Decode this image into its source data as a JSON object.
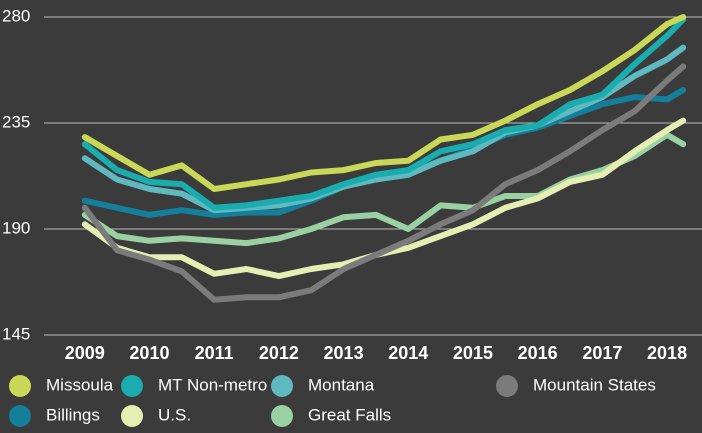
{
  "chart_data": {
    "type": "line",
    "x": [
      2009,
      2009.5,
      2010,
      2010.5,
      2011,
      2011.5,
      2012,
      2012.5,
      2013,
      2013.5,
      2014,
      2014.5,
      2015,
      2015.5,
      2016,
      2016.5,
      2017,
      2017.5,
      2018,
      2018.25
    ],
    "xlim": [
      2007.69,
      2018.54
    ],
    "xticks": [
      2009,
      2010,
      2011,
      2012,
      2013,
      2014,
      2015,
      2016,
      2017,
      2018
    ],
    "ylim": [
      145,
      280
    ],
    "yticks": [
      145,
      190,
      235,
      280
    ],
    "grid": true,
    "series": [
      {
        "name": "Missoula",
        "color": "#c9d957",
        "values": [
          229,
          221,
          213,
          217,
          207,
          209,
          211,
          214,
          215,
          218,
          219,
          228,
          230,
          236,
          243,
          249,
          257,
          266,
          277,
          280
        ]
      },
      {
        "name": "MT Non-metro",
        "color": "#1aadb0",
        "values": [
          226,
          215,
          210,
          209,
          199,
          200,
          202,
          204,
          209,
          213,
          215,
          223,
          226,
          232,
          234,
          243,
          247,
          260,
          272,
          279
        ]
      },
      {
        "name": "Montana",
        "color": "#5fb9c1",
        "values": [
          220,
          211,
          207,
          205,
          198,
          199,
          200,
          203,
          208,
          211,
          213,
          219,
          223,
          231,
          234,
          240,
          246,
          255,
          262,
          267
        ]
      },
      {
        "name": "Mountain States",
        "color": "#7b7b7b",
        "values": [
          199,
          181,
          177,
          172,
          160,
          161,
          161,
          164,
          173,
          179,
          185,
          192,
          198,
          209,
          215,
          223,
          232,
          240,
          253,
          259
        ]
      },
      {
        "name": "Billings",
        "color": "#137f9b",
        "values": [
          202,
          199,
          196,
          198,
          196,
          197,
          197,
          202,
          208,
          212,
          214,
          219,
          224,
          230,
          233,
          238,
          243,
          246,
          245,
          249
        ]
      },
      {
        "name": "U.S.",
        "color": "#e6efb3",
        "values": [
          192,
          182,
          178,
          178,
          171,
          173,
          170,
          173,
          175,
          179,
          182,
          187,
          192,
          199,
          203,
          210,
          213,
          223,
          232,
          236
        ]
      },
      {
        "name": "Great Falls",
        "color": "#9ad1a3",
        "values": [
          196,
          187,
          185,
          186,
          185,
          184,
          186,
          190,
          195,
          196,
          190,
          200,
          199,
          204,
          204,
          211,
          215,
          221,
          230,
          226
        ]
      }
    ]
  }
}
